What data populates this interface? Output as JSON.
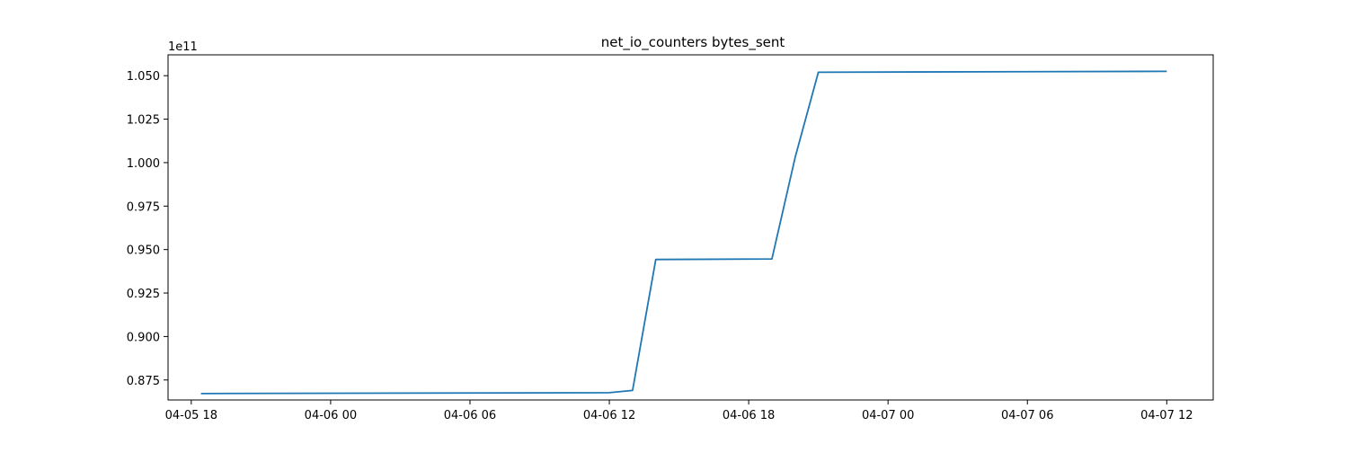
{
  "chart_data": {
    "type": "line",
    "title": "net_io_counters bytes_sent",
    "xlabel": "",
    "ylabel": "",
    "y_offset_label": "1e11",
    "x_axis_type": "datetime",
    "xlim": [
      "2024-04-05T17:00:00",
      "2024-04-07T14:00:00"
    ],
    "ylim": [
      0.8635,
      1.062
    ],
    "y_scale_factor": 100000000000.0,
    "x_ticks": [
      {
        "value": "2024-04-05T18:00:00",
        "label": "04-05 18"
      },
      {
        "value": "2024-04-06T00:00:00",
        "label": "04-06 00"
      },
      {
        "value": "2024-04-06T06:00:00",
        "label": "04-06 06"
      },
      {
        "value": "2024-04-06T12:00:00",
        "label": "04-06 12"
      },
      {
        "value": "2024-04-06T18:00:00",
        "label": "04-06 18"
      },
      {
        "value": "2024-04-07T00:00:00",
        "label": "04-07 00"
      },
      {
        "value": "2024-04-07T06:00:00",
        "label": "04-07 06"
      },
      {
        "value": "2024-04-07T12:00:00",
        "label": "04-07 12"
      }
    ],
    "y_ticks": [
      {
        "value": 0.875,
        "label": "0.875"
      },
      {
        "value": 0.9,
        "label": "0.900"
      },
      {
        "value": 0.925,
        "label": "0.925"
      },
      {
        "value": 0.95,
        "label": "0.950"
      },
      {
        "value": 0.975,
        "label": "0.975"
      },
      {
        "value": 1.0,
        "label": "1.000"
      },
      {
        "value": 1.025,
        "label": "1.025"
      },
      {
        "value": 1.05,
        "label": "1.050"
      }
    ],
    "grid": false,
    "legend": "none",
    "series": [
      {
        "color": "#1f77b4",
        "points": [
          {
            "x": "2024-04-05T18:25:00",
            "y": 0.8672
          },
          {
            "x": "2024-04-06T12:00:00",
            "y": 0.8677
          },
          {
            "x": "2024-04-06T13:00:00",
            "y": 0.869
          },
          {
            "x": "2024-04-06T14:00:00",
            "y": 0.9443
          },
          {
            "x": "2024-04-06T19:00:00",
            "y": 0.9446
          },
          {
            "x": "2024-04-06T20:00:00",
            "y": 1.003
          },
          {
            "x": "2024-04-06T21:00:00",
            "y": 1.052
          },
          {
            "x": "2024-04-07T12:00:00",
            "y": 1.0525
          }
        ]
      }
    ]
  }
}
